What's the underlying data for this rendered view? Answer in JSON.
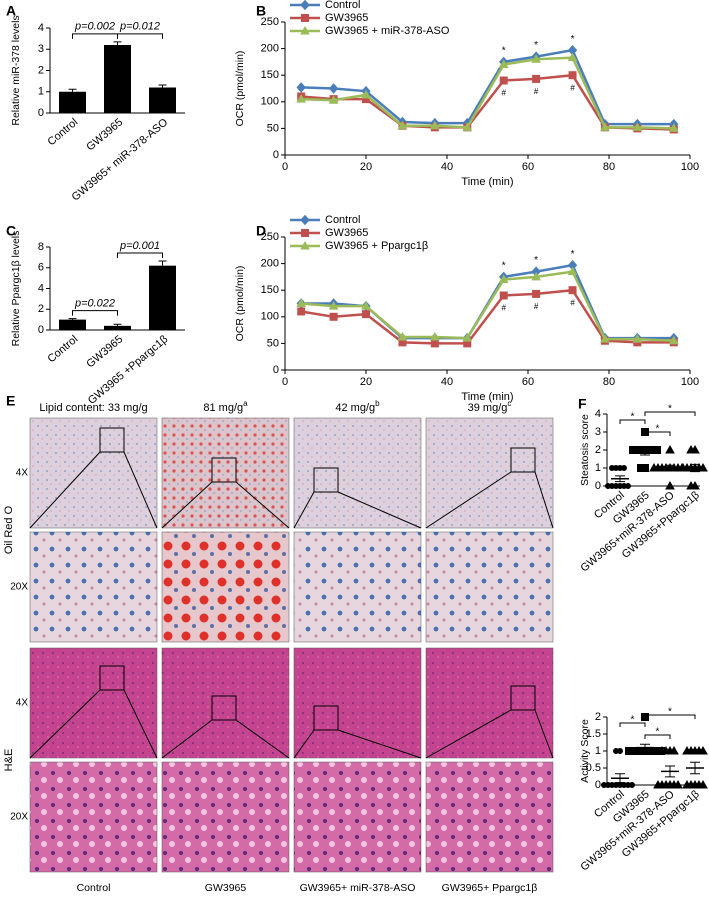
{
  "chart_data": [
    {
      "type": "bar",
      "panel": "A",
      "ylabel": "Relative miR-378 levels",
      "categories": [
        "Control",
        "GW3965",
        "GW3965+ miR-378-ASO"
      ],
      "values": [
        1.0,
        3.2,
        1.2
      ],
      "errors": [
        0.12,
        0.15,
        0.12
      ],
      "color": "#000000",
      "ylim": [
        0,
        4
      ],
      "yticks": [
        0,
        1,
        2,
        3,
        4
      ],
      "annotations": [
        "p=0.002",
        "p=0.012"
      ]
    },
    {
      "type": "line",
      "panel": "B",
      "xlabel": "Time (min)",
      "ylabel": "OCR (pmol/min)",
      "x": [
        4,
        12,
        20,
        29,
        37,
        45,
        54,
        62,
        71,
        79,
        87,
        96
      ],
      "series": [
        {
          "name": "Control",
          "color": "#4a7ebb",
          "marker": "diamond",
          "values": [
            127,
            125,
            120,
            62,
            60,
            60,
            175,
            185,
            197,
            58,
            58,
            58
          ]
        },
        {
          "name": "GW3965",
          "color": "#c0504d",
          "marker": "square",
          "values": [
            110,
            105,
            105,
            55,
            52,
            52,
            140,
            143,
            150,
            52,
            50,
            48
          ]
        },
        {
          "name": "GW3965 + miR-378-ASO",
          "color": "#9bbb59",
          "marker": "triangle",
          "values": [
            105,
            103,
            113,
            55,
            55,
            52,
            170,
            180,
            183,
            52,
            52,
            50
          ]
        }
      ],
      "xlim": [
        0,
        100
      ],
      "xticks": [
        0,
        20,
        40,
        60,
        80,
        100
      ],
      "ylim": [
        0,
        250
      ],
      "yticks": [
        0,
        50,
        100,
        150,
        200,
        250
      ],
      "sig_above": "*",
      "sig_below": "#"
    },
    {
      "type": "bar",
      "panel": "C",
      "ylabel": "Relative Ppargc1β levels",
      "categories": [
        "Control",
        "GW3965",
        "GW3965 +Ppargc1β"
      ],
      "values": [
        1.0,
        0.4,
        6.2
      ],
      "errors": [
        0.1,
        0.15,
        0.45
      ],
      "color": "#000000",
      "ylim": [
        0,
        8
      ],
      "yticks": [
        0,
        2,
        4,
        6,
        8
      ],
      "annotations": [
        "p=0.022",
        "p=0.001"
      ]
    },
    {
      "type": "line",
      "panel": "D",
      "xlabel": "Time (min)",
      "ylabel": "OCR (pmol/min)",
      "x": [
        4,
        12,
        20,
        29,
        37,
        45,
        54,
        62,
        71,
        79,
        87,
        96
      ],
      "series": [
        {
          "name": "Control",
          "color": "#4a7ebb",
          "marker": "diamond",
          "values": [
            125,
            125,
            120,
            60,
            60,
            60,
            175,
            185,
            197,
            60,
            60,
            60
          ]
        },
        {
          "name": "GW3965",
          "color": "#c0504d",
          "marker": "square",
          "values": [
            110,
            100,
            105,
            52,
            50,
            50,
            140,
            143,
            150,
            55,
            52,
            52
          ]
        },
        {
          "name": "GW3965 + Ppargc1β",
          "color": "#9bbb59",
          "marker": "triangle",
          "values": [
            125,
            120,
            120,
            62,
            62,
            60,
            170,
            175,
            185,
            58,
            58,
            55
          ]
        }
      ],
      "xlim": [
        0,
        100
      ],
      "xticks": [
        0,
        20,
        40,
        60,
        80,
        100
      ],
      "ylim": [
        0,
        250
      ],
      "yticks": [
        0,
        50,
        100,
        150,
        200,
        250
      ],
      "sig_above": "*",
      "sig_below": "#"
    },
    {
      "type": "dot",
      "panel": "F",
      "ylabel": "Steatosis score",
      "categories": [
        "Control",
        "GW3965",
        "GW3965+miR-378-ASO",
        "GW3965+Ppargc1β"
      ],
      "points": [
        [
          0,
          0,
          0,
          0,
          0,
          0,
          1,
          1,
          1,
          1
        ],
        [
          2,
          2,
          2,
          2,
          2,
          2,
          1,
          2,
          3,
          1
        ],
        [
          1,
          1,
          1,
          1,
          1,
          0,
          2,
          1,
          1,
          1
        ],
        [
          1,
          1,
          0,
          2,
          1,
          1,
          0,
          2,
          1,
          1
        ]
      ],
      "means": [
        0.4,
        1.9,
        1.0,
        1.0
      ],
      "errors": [
        0.16,
        0.18,
        0.15,
        0.2
      ],
      "ylim": [
        0,
        4
      ],
      "yticks": [
        0,
        1,
        2,
        3,
        4
      ],
      "sig_labels": [
        "*",
        "*",
        "*"
      ]
    },
    {
      "type": "dot",
      "ylabel": "Activity Score",
      "categories": [
        "Control",
        "GW3965",
        "GW3965+miR-378-ASO",
        "GW3965+Ppargc1β"
      ],
      "points": [
        [
          0,
          0,
          0,
          0,
          0,
          0,
          0,
          0,
          1,
          1
        ],
        [
          1,
          1,
          1,
          1,
          1,
          1,
          1,
          1,
          2,
          1
        ],
        [
          0,
          0,
          0,
          0,
          1,
          1,
          0,
          1,
          0,
          1
        ],
        [
          0,
          1,
          0,
          1,
          0,
          1,
          0,
          1,
          0,
          1
        ]
      ],
      "means": [
        0.2,
        1.1,
        0.4,
        0.5
      ],
      "errors": [
        0.13,
        0.1,
        0.16,
        0.17
      ],
      "ylim": [
        0,
        2
      ],
      "yticks": [
        0,
        0.5,
        1,
        1.5,
        2
      ],
      "sig_labels": [
        "*",
        "*",
        "*"
      ]
    }
  ],
  "panel_e": {
    "label": "E",
    "lipid": [
      {
        "text": "Lipid content: 33 mg/g"
      },
      {
        "text": "81 mg/g",
        "sup": "a"
      },
      {
        "text": "42 mg/g",
        "sup": "b"
      },
      {
        "text": "39 mg/g",
        "sup": "c"
      }
    ],
    "stains": [
      "Oil Red O",
      "H&E"
    ],
    "magnifications": [
      "4X",
      "20X"
    ],
    "columns": [
      "Control",
      "GW3965",
      "GW3965+ miR-378-ASO",
      "GW3965+ Ppargc1β"
    ]
  }
}
